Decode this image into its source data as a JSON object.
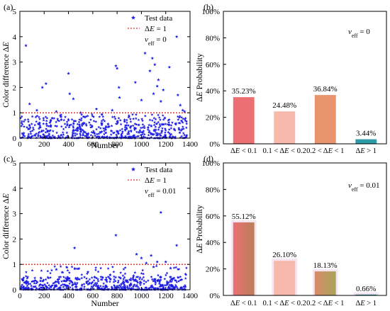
{
  "chart_data": [
    {
      "panel": "(a)",
      "type": "scatter",
      "ylabel": "Color difference ΔE",
      "xlabel": "Number",
      "xlim": [
        0,
        1400
      ],
      "ylim": [
        0,
        5
      ],
      "xticks": [
        "0",
        "200",
        "400",
        "600",
        "800",
        "1000",
        "1200",
        "1400"
      ],
      "yticks": [
        "0",
        "1",
        "2",
        "3",
        "4",
        "5"
      ],
      "legend": {
        "series_label": "Test data",
        "threshold_label": "ΔE = 1",
        "annotation": "v_eff = 0",
        "position": "top-right"
      },
      "threshold": 1,
      "n_points": 1375,
      "series_color": "#1a1ae6",
      "threshold_color": "#cc0000",
      "outliers": [
        {
          "x": 50,
          "y": 3.65
        },
        {
          "x": 80,
          "y": 1.35
        },
        {
          "x": 140,
          "y": 1.1
        },
        {
          "x": 185,
          "y": 2.0
        },
        {
          "x": 215,
          "y": 2.15
        },
        {
          "x": 300,
          "y": 1.05
        },
        {
          "x": 400,
          "y": 2.55
        },
        {
          "x": 410,
          "y": 1.75
        },
        {
          "x": 440,
          "y": 1.55
        },
        {
          "x": 500,
          "y": 1.0
        },
        {
          "x": 630,
          "y": 1.15
        },
        {
          "x": 760,
          "y": 1.1
        },
        {
          "x": 790,
          "y": 2.85
        },
        {
          "x": 800,
          "y": 2.75
        },
        {
          "x": 815,
          "y": 2.0
        },
        {
          "x": 820,
          "y": 1.6
        },
        {
          "x": 950,
          "y": 2.2
        },
        {
          "x": 1000,
          "y": 1.5
        },
        {
          "x": 1030,
          "y": 3.35
        },
        {
          "x": 1070,
          "y": 2.65
        },
        {
          "x": 1090,
          "y": 3.15
        },
        {
          "x": 1100,
          "y": 1.75
        },
        {
          "x": 1110,
          "y": 2.9
        },
        {
          "x": 1130,
          "y": 2.05
        },
        {
          "x": 1140,
          "y": 2.3
        },
        {
          "x": 1160,
          "y": 1.45
        },
        {
          "x": 1180,
          "y": 1.9
        },
        {
          "x": 1230,
          "y": 2.8
        },
        {
          "x": 1290,
          "y": 4.0
        },
        {
          "x": 1300,
          "y": 1.7
        },
        {
          "x": 1320,
          "y": 1.3
        },
        {
          "x": 1340,
          "y": 1.1
        },
        {
          "x": 1355,
          "y": 1.05
        }
      ]
    },
    {
      "panel": "(b)",
      "type": "bar",
      "ylabel": "ΔE Probability",
      "annotation": "v_eff = 0",
      "categories": [
        "ΔE < 0.1",
        "0.1 < ΔE < 0.2",
        "0.2 < ΔE < 1",
        "ΔE > 1"
      ],
      "values": [
        35.23,
        24.48,
        36.84,
        3.44
      ],
      "value_labels": [
        "35.23%",
        "24.48%",
        "36.84%",
        "3.44%"
      ],
      "colors": [
        "#ec6f73",
        "#f7b9ac",
        "#e8956d",
        "#2e9ba8"
      ],
      "ylim": [
        0,
        100
      ],
      "yticks": [
        "0%",
        "20%",
        "40%",
        "60%",
        "80%",
        "100%"
      ]
    },
    {
      "panel": "(c)",
      "type": "scatter",
      "ylabel": "Color difference ΔE",
      "xlabel": "Number",
      "xlim": [
        0,
        1400
      ],
      "ylim": [
        0,
        5
      ],
      "xticks": [
        "0",
        "200",
        "400",
        "600",
        "800",
        "1000",
        "1200",
        "1400"
      ],
      "yticks": [
        "0",
        "1",
        "2",
        "3",
        "4",
        "5"
      ],
      "legend": {
        "series_label": "Test data",
        "threshold_label": "ΔE = 1",
        "annotation": "v_eff = 0.01",
        "position": "top-right"
      },
      "threshold": 1,
      "n_points": 1375,
      "series_color": "#1a1ae6",
      "threshold_color": "#cc0000",
      "outliers": [
        {
          "x": 300,
          "y": 0.8
        },
        {
          "x": 450,
          "y": 1.65
        },
        {
          "x": 560,
          "y": 0.7
        },
        {
          "x": 790,
          "y": 2.15
        },
        {
          "x": 960,
          "y": 1.4
        },
        {
          "x": 1000,
          "y": 1.25
        },
        {
          "x": 1040,
          "y": 1.05
        },
        {
          "x": 1080,
          "y": 1.35
        },
        {
          "x": 1100,
          "y": 0.9
        },
        {
          "x": 1130,
          "y": 1.1
        },
        {
          "x": 1160,
          "y": 3.05
        },
        {
          "x": 1200,
          "y": 1.1
        },
        {
          "x": 1240,
          "y": 0.85
        },
        {
          "x": 1290,
          "y": 1.75
        }
      ]
    },
    {
      "panel": "(d)",
      "type": "bar",
      "ylabel": "ΔE Probability",
      "annotation": "v_eff = 0.01",
      "categories": [
        "ΔE < 0.1",
        "0.1 < ΔE < 0.2",
        "0.2 < ΔE < 1",
        "ΔE > 1"
      ],
      "values": [
        55.12,
        26.1,
        18.13,
        0.66
      ],
      "value_labels": [
        "55.12%",
        "26.10%",
        "18.13%",
        "0.66%"
      ],
      "colors": [
        "#ec6f73",
        "#f7b9ac",
        "#c09a60",
        "#2e9ba8"
      ],
      "ylim": [
        0,
        100
      ],
      "yticks": [
        "0%",
        "20%",
        "40%",
        "60%",
        "80%",
        "100%"
      ]
    }
  ]
}
